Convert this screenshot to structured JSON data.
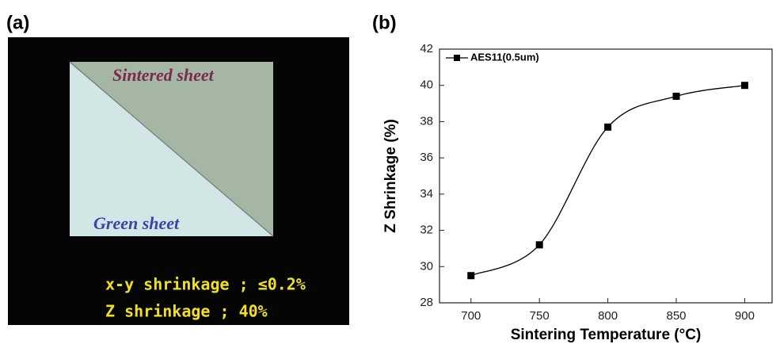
{
  "panels": {
    "a": {
      "label": "(a)",
      "sintered": "Sintered sheet",
      "green": "Green sheet",
      "notes": [
        "x-y shrinkage ; ≤0.2%",
        "Z shrinkage ; 40%"
      ]
    }
  },
  "chart_data": {
    "type": "line",
    "panel_label": "(b)",
    "x_label": "Sintering Temperature (°C)",
    "y_label": "Z Shrinkage (%)",
    "x": [
      700,
      750,
      800,
      850,
      900
    ],
    "series": [
      {
        "name": "AES11(0.5um)",
        "color": "#000000",
        "values": [
          29.5,
          31.2,
          37.7,
          39.4,
          40.0
        ]
      }
    ],
    "xlim": [
      677,
      920
    ],
    "xticks": [
      700,
      750,
      800,
      850,
      900
    ],
    "ylim": [
      28,
      42
    ],
    "yticks": [
      28,
      30,
      32,
      34,
      36,
      38,
      40,
      42
    ],
    "grid": false,
    "legend": "top-left",
    "smooth": true
  }
}
